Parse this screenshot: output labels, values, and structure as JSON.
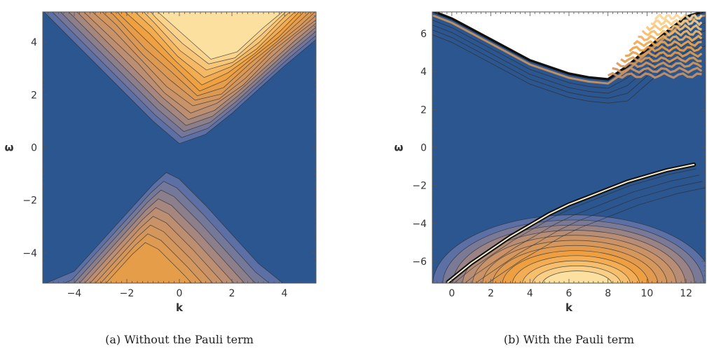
{
  "chart_data": [
    {
      "type": "contour",
      "xlabel": "k",
      "ylabel": "ω",
      "xlim": [
        -5.2,
        5.2
      ],
      "ylim": [
        -5.15,
        5.15
      ],
      "xticks": [
        -4,
        -2,
        0,
        2,
        4
      ],
      "yticks": [
        -4,
        -2,
        0,
        2,
        4
      ],
      "caption": "(a) Without the Pauli term",
      "background_color": "#2c5690",
      "ramp_colors": [
        "#4a6ab0",
        "#c09070",
        "#f0a040",
        "#fce0a0"
      ],
      "features": [
        {
          "name": "upper_band_edge",
          "x": [
            -5.2,
            -4,
            -3,
            -2,
            -1,
            0,
            1,
            2,
            3,
            4,
            5.2
          ],
          "y": [
            5.2,
            4.0,
            3.0,
            2.0,
            1.0,
            0.15,
            0.5,
            1.3,
            2.2,
            3.1,
            4.1
          ]
        },
        {
          "name": "lower_band_edge",
          "x": [
            -5.2,
            -4,
            -3,
            -2,
            -1,
            -0.5,
            0,
            1,
            2,
            3,
            4
          ],
          "y": [
            -5.2,
            -4.7,
            -3.6,
            -2.5,
            -1.4,
            -0.95,
            -1.2,
            -2.2,
            -3.3,
            -4.4,
            -5.2
          ]
        }
      ]
    },
    {
      "type": "contour",
      "xlabel": "k",
      "ylabel": "ω",
      "xlim": [
        -1,
        13
      ],
      "ylim": [
        -7.15,
        7.15
      ],
      "xticks": [
        0,
        2,
        4,
        6,
        8,
        10,
        12
      ],
      "yticks": [
        -6,
        -4,
        -2,
        0,
        2,
        4,
        6
      ],
      "caption": "(b) With the Pauli term",
      "background_color": "#2c5690",
      "ramp_colors": [
        "#4a6ab0",
        "#c09070",
        "#f0a040",
        "#fce0a0"
      ],
      "features": [
        {
          "name": "upper_boundary",
          "x": [
            -1,
            0,
            2,
            4,
            6,
            7,
            8,
            9,
            10,
            11,
            12,
            13
          ],
          "y": [
            7.2,
            6.8,
            5.7,
            4.6,
            3.9,
            3.7,
            3.6,
            4.3,
            5.2,
            6.1,
            6.9,
            7.2
          ]
        },
        {
          "name": "lower_pole_line",
          "x": [
            -0.2,
            1,
            2,
            3,
            4,
            5,
            6,
            7,
            8,
            9,
            10,
            11,
            12.4
          ],
          "y": [
            -7.1,
            -6.1,
            -5.4,
            -4.7,
            -4.1,
            -3.5,
            -3.0,
            -2.6,
            -2.2,
            -1.8,
            -1.5,
            -1.2,
            -0.9
          ]
        }
      ]
    }
  ]
}
